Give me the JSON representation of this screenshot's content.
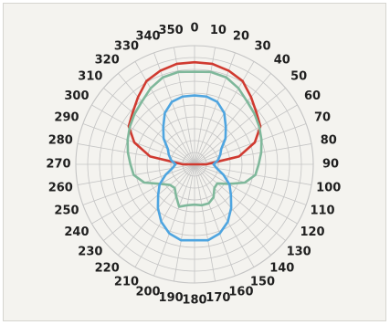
{
  "chart_data": {
    "type": "polar-line",
    "title": "",
    "angle_unit": "degrees",
    "angle_direction": "clockwise",
    "zero_angle": "top",
    "angle_ticks": [
      "0",
      "10",
      "20",
      "30",
      "40",
      "50",
      "60",
      "70",
      "80",
      "90",
      "100",
      "110",
      "120",
      "130",
      "140",
      "150",
      "160",
      "170",
      "180",
      "190",
      "200",
      "210",
      "220",
      "230",
      "240",
      "250",
      "260",
      "270",
      "280",
      "290",
      "300",
      "310",
      "320",
      "330",
      "340",
      "350"
    ],
    "radial_range": [
      0,
      1
    ],
    "radial_rings": 10,
    "grid": true,
    "legend": "none",
    "series": [
      {
        "color": "#d03a30",
        "points": [
          {
            "angle": 0,
            "r": 0.86
          },
          {
            "angle": 10,
            "r": 0.86
          },
          {
            "angle": 20,
            "r": 0.84
          },
          {
            "angle": 30,
            "r": 0.81
          },
          {
            "angle": 40,
            "r": 0.74
          },
          {
            "angle": 50,
            "r": 0.68
          },
          {
            "angle": 60,
            "r": 0.64
          },
          {
            "angle": 70,
            "r": 0.54
          },
          {
            "angle": 80,
            "r": 0.38
          },
          {
            "angle": 90,
            "r": 0.1
          },
          {
            "angle": 270,
            "r": 0.1
          },
          {
            "angle": 280,
            "r": 0.38
          },
          {
            "angle": 290,
            "r": 0.54
          },
          {
            "angle": 300,
            "r": 0.64
          },
          {
            "angle": 310,
            "r": 0.68
          },
          {
            "angle": 320,
            "r": 0.74
          },
          {
            "angle": 330,
            "r": 0.81
          },
          {
            "angle": 340,
            "r": 0.84
          },
          {
            "angle": 350,
            "r": 0.86
          },
          {
            "angle": 360,
            "r": 0.86
          }
        ]
      },
      {
        "color": "#7fb89b",
        "points": [
          {
            "angle": 0,
            "r": 0.78
          },
          {
            "angle": 10,
            "r": 0.79
          },
          {
            "angle": 20,
            "r": 0.78
          },
          {
            "angle": 30,
            "r": 0.74
          },
          {
            "angle": 40,
            "r": 0.69
          },
          {
            "angle": 50,
            "r": 0.66
          },
          {
            "angle": 60,
            "r": 0.63
          },
          {
            "angle": 70,
            "r": 0.6
          },
          {
            "angle": 80,
            "r": 0.57
          },
          {
            "angle": 90,
            "r": 0.54
          },
          {
            "angle": 100,
            "r": 0.52
          },
          {
            "angle": 110,
            "r": 0.45
          },
          {
            "angle": 120,
            "r": 0.33
          },
          {
            "angle": 130,
            "r": 0.25
          },
          {
            "angle": 140,
            "r": 0.26
          },
          {
            "angle": 150,
            "r": 0.32
          },
          {
            "angle": 160,
            "r": 0.35
          },
          {
            "angle": 170,
            "r": 0.35
          },
          {
            "angle": 180,
            "r": 0.34
          },
          {
            "angle": 190,
            "r": 0.35
          },
          {
            "angle": 200,
            "r": 0.38
          },
          {
            "angle": 210,
            "r": 0.31
          },
          {
            "angle": 220,
            "r": 0.26
          },
          {
            "angle": 230,
            "r": 0.27
          },
          {
            "angle": 240,
            "r": 0.33
          },
          {
            "angle": 250,
            "r": 0.45
          },
          {
            "angle": 260,
            "r": 0.52
          },
          {
            "angle": 270,
            "r": 0.54
          },
          {
            "angle": 280,
            "r": 0.57
          },
          {
            "angle": 290,
            "r": 0.6
          },
          {
            "angle": 300,
            "r": 0.63
          },
          {
            "angle": 310,
            "r": 0.66
          },
          {
            "angle": 320,
            "r": 0.69
          },
          {
            "angle": 330,
            "r": 0.74
          },
          {
            "angle": 340,
            "r": 0.78
          },
          {
            "angle": 350,
            "r": 0.79
          },
          {
            "angle": 360,
            "r": 0.78
          }
        ]
      },
      {
        "color": "#4ea5e0",
        "points": [
          {
            "angle": 0,
            "r": 0.58
          },
          {
            "angle": 10,
            "r": 0.58
          },
          {
            "angle": 20,
            "r": 0.56
          },
          {
            "angle": 30,
            "r": 0.5
          },
          {
            "angle": 40,
            "r": 0.41
          },
          {
            "angle": 50,
            "r": 0.34
          },
          {
            "angle": 60,
            "r": 0.26
          },
          {
            "angle": 70,
            "r": 0.23
          },
          {
            "angle": 80,
            "r": 0.2
          },
          {
            "angle": 90,
            "r": 0.16
          },
          {
            "angle": 100,
            "r": 0.19
          },
          {
            "angle": 110,
            "r": 0.26
          },
          {
            "angle": 120,
            "r": 0.34
          },
          {
            "angle": 130,
            "r": 0.4
          },
          {
            "angle": 140,
            "r": 0.48
          },
          {
            "angle": 150,
            "r": 0.56
          },
          {
            "angle": 160,
            "r": 0.62
          },
          {
            "angle": 170,
            "r": 0.65
          },
          {
            "angle": 180,
            "r": 0.64
          },
          {
            "angle": 190,
            "r": 0.65
          },
          {
            "angle": 200,
            "r": 0.62
          },
          {
            "angle": 210,
            "r": 0.56
          },
          {
            "angle": 220,
            "r": 0.48
          },
          {
            "angle": 230,
            "r": 0.4
          },
          {
            "angle": 240,
            "r": 0.34
          },
          {
            "angle": 250,
            "r": 0.26
          },
          {
            "angle": 260,
            "r": 0.19
          },
          {
            "angle": 270,
            "r": 0.16
          },
          {
            "angle": 280,
            "r": 0.2
          },
          {
            "angle": 290,
            "r": 0.23
          },
          {
            "angle": 300,
            "r": 0.26
          },
          {
            "angle": 310,
            "r": 0.34
          },
          {
            "angle": 320,
            "r": 0.41
          },
          {
            "angle": 330,
            "r": 0.5
          },
          {
            "angle": 340,
            "r": 0.56
          },
          {
            "angle": 350,
            "r": 0.58
          },
          {
            "angle": 360,
            "r": 0.58
          }
        ]
      }
    ]
  },
  "colors": {
    "panel_background": "#f4f3ef",
    "grid": "#c4c4c4",
    "label": "#1f1f1f"
  }
}
